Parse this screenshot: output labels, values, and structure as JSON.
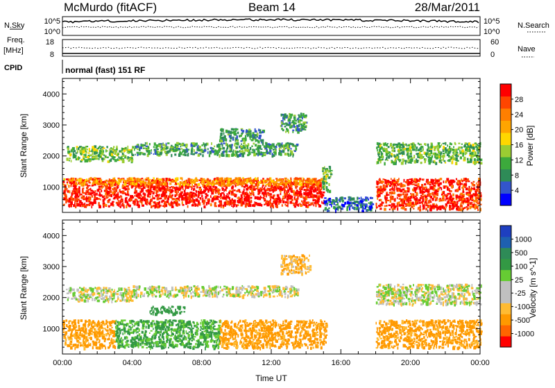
{
  "header": {
    "site": "McMurdo (fitACF)",
    "beam": "Beam 14",
    "date": "28/Mar/2011"
  },
  "top_panels": {
    "nsky_label": "N.Sky",
    "nsky_ticks": [
      "10^5",
      "10^0"
    ],
    "nsearch_label": "N.Search",
    "nsearch_ticks": [
      "10^5",
      "10^0"
    ],
    "freq_label": "Freq.",
    "freq_unit": "[MHz]",
    "freq_ticks": [
      "18",
      "8"
    ],
    "nave_label": "Nave",
    "nave_ticks": [
      "60",
      "0"
    ],
    "cpid_label": "CPID",
    "cpid_value": "normal (fast) 151 RF"
  },
  "colors": {
    "power_scale": [
      "#0000ff",
      "#3355cc",
      "#2e8b57",
      "#3caa3c",
      "#9acd32",
      "#ffd700",
      "#ffa500",
      "#ff7f00",
      "#ff4500",
      "#ff0000"
    ],
    "velocity_scale": [
      "#ff0000",
      "#ff6600",
      "#ff9900",
      "#ffbb33",
      "#c0c0c0",
      "#c0c0c0",
      "#66cc33",
      "#339944",
      "#2e8b57",
      "#1e60b0",
      "#1e3fc0"
    ]
  },
  "chart_data": [
    {
      "type": "heatmap",
      "name": "power",
      "ylabel": "Slant Range [km]",
      "xlim": [
        0,
        24
      ],
      "ylim": [
        180,
        4500
      ],
      "yticks": [
        "1000",
        "2000",
        "3000",
        "4000"
      ],
      "colorbar_label": "Power [dB]",
      "colorbar_ticks": [
        "4",
        "8",
        "12",
        "16",
        "20",
        "24",
        "28"
      ],
      "bands": [
        {
          "x": [
            0.0,
            15.0
          ],
          "y": [
            400,
            1300
          ],
          "value": 30
        },
        {
          "x": [
            0.0,
            15.0
          ],
          "y": [
            1100,
            1320
          ],
          "value": 22
        },
        {
          "x": [
            0.2,
            4.0
          ],
          "y": [
            1850,
            2350
          ],
          "value": 12
        },
        {
          "x": [
            4.0,
            13.5
          ],
          "y": [
            2050,
            2450
          ],
          "value": 10
        },
        {
          "x": [
            9.0,
            11.5
          ],
          "y": [
            2500,
            2900
          ],
          "value": 9
        },
        {
          "x": [
            12.5,
            14.0
          ],
          "y": [
            2800,
            3400
          ],
          "value": 10
        },
        {
          "x": [
            14.9,
            15.4
          ],
          "y": [
            900,
            1700
          ],
          "value": 12
        },
        {
          "x": [
            15.0,
            17.8
          ],
          "y": [
            250,
            700
          ],
          "value": 6
        },
        {
          "x": [
            18.0,
            24.0
          ],
          "y": [
            300,
            1300
          ],
          "value": 29
        },
        {
          "x": [
            18.0,
            24.0
          ],
          "y": [
            1800,
            2450
          ],
          "value": 12
        }
      ]
    },
    {
      "type": "heatmap",
      "name": "velocity",
      "ylabel": "Slant Range [km]",
      "xlabel": "Time UT",
      "xlim": [
        0,
        24
      ],
      "ylim": [
        180,
        4500
      ],
      "xticks": [
        "00:00",
        "04:00",
        "08:00",
        "12:00",
        "16:00",
        "20:00",
        "00:00"
      ],
      "yticks": [
        "1000",
        "2000",
        "3000",
        "4000"
      ],
      "colorbar_label": "Velocity [m s^-1]",
      "colorbar_ticks": [
        "1000",
        "500",
        "100",
        "25",
        "-25",
        "-100",
        "-500",
        "-1000"
      ],
      "bands": [
        {
          "x": [
            0.0,
            3.0
          ],
          "y": [
            400,
            1300
          ],
          "value": -150
        },
        {
          "x": [
            3.0,
            9.0
          ],
          "y": [
            400,
            1300
          ],
          "value": 120
        },
        {
          "x": [
            9.0,
            15.2
          ],
          "y": [
            400,
            1300
          ],
          "value": -150
        },
        {
          "x": [
            0.2,
            4.0
          ],
          "y": [
            1900,
            2350
          ],
          "value": 0
        },
        {
          "x": [
            4.0,
            13.5
          ],
          "y": [
            2050,
            2400
          ],
          "value": 0
        },
        {
          "x": [
            5.0,
            7.0
          ],
          "y": [
            1500,
            1750
          ],
          "value": 200
        },
        {
          "x": [
            12.5,
            14.2
          ],
          "y": [
            2800,
            3400
          ],
          "value": -80
        },
        {
          "x": [
            18.0,
            24.0
          ],
          "y": [
            400,
            1300
          ],
          "value": -150
        },
        {
          "x": [
            18.0,
            24.0
          ],
          "y": [
            1800,
            2450
          ],
          "value": 0
        }
      ]
    }
  ]
}
